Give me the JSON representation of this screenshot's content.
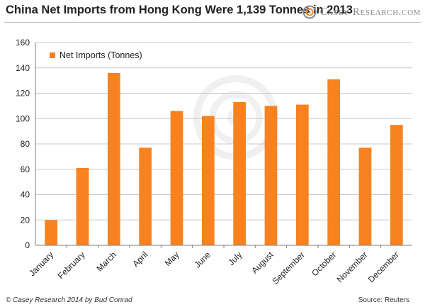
{
  "header": {
    "title": "China Net Imports from Hong Kong Were 1,139 Tonnes in 2013",
    "brand": "Casey Research.com",
    "brand_icon": "casey-research-logo-icon"
  },
  "footer": {
    "copyright": "© Casey Research 2014 by Bud Conrad",
    "source": "Source: Reuters"
  },
  "colors": {
    "bar": "#F7821F",
    "grid": "#c8c8c8",
    "axis": "#7f7f7f",
    "text": "#222222"
  },
  "chart_data": {
    "type": "bar",
    "title": "China Net Imports from Hong Kong Were 1,139 Tonnes in 2013",
    "categories": [
      "January",
      "February",
      "March",
      "April",
      "May",
      "June",
      "July",
      "August",
      "September",
      "October",
      "November",
      "December"
    ],
    "series": [
      {
        "name": "Net Imports (Tonnes)",
        "values": [
          20,
          61,
          136,
          77,
          106,
          102,
          113,
          110,
          111,
          131,
          77,
          95
        ]
      }
    ],
    "ylim": [
      0,
      160
    ],
    "yticks": [
      0,
      20,
      40,
      60,
      80,
      100,
      120,
      140,
      160
    ],
    "grid": true,
    "legend_position": "top-left",
    "xlabel": "",
    "ylabel": ""
  }
}
